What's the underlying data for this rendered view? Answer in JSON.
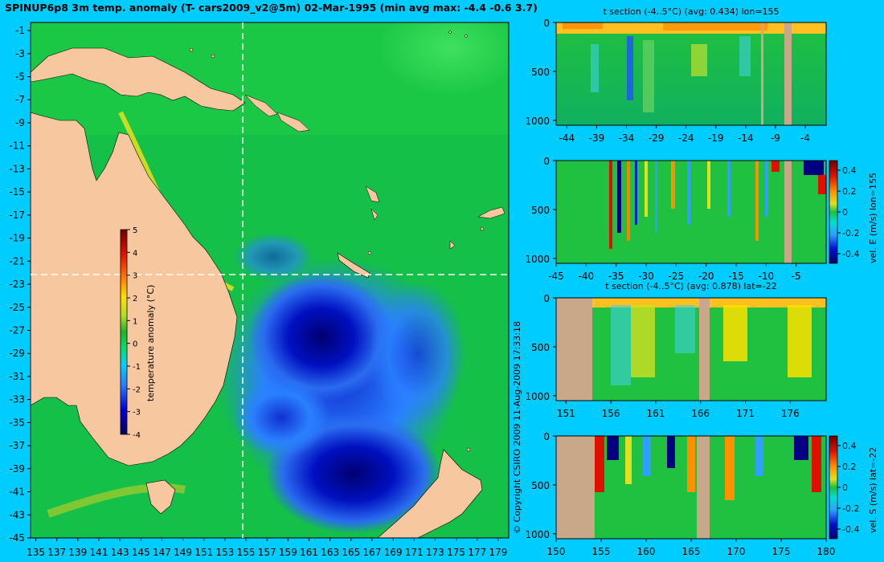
{
  "title": "SPINUP6p8 3m temp. anomaly (T- cars2009_v2@5m) 02-Mar-1995 (min avg max: -4.4 -0.6 3.7)",
  "copyright": "© Copyright CSIRO 2009   11-Aug-2009 17:33:18",
  "colors": {
    "background": "#00ccff",
    "land": "#f7c8a0",
    "section_land": "#c8a888",
    "crosshair": "#ffffff",
    "colormap": [
      "#000060",
      "#0000d8",
      "#2a7cff",
      "#00d0ff",
      "#00e070",
      "#20b030",
      "#b0e020",
      "#ffe000",
      "#ff8000",
      "#e01000",
      "#700000"
    ]
  },
  "map": {
    "x_ticks": [
      "135",
      "137",
      "139",
      "141",
      "143",
      "145",
      "147",
      "149",
      "151",
      "153",
      "155",
      "157",
      "159",
      "161",
      "163",
      "165",
      "167",
      "169",
      "171",
      "173",
      "175",
      "177",
      "179"
    ],
    "y_ticks": [
      "-1",
      "-3",
      "-5",
      "-7",
      "-9",
      "-11",
      "-13",
      "-15",
      "-17",
      "-19",
      "-21",
      "-23",
      "-25",
      "-27",
      "-29",
      "-31",
      "-33",
      "-35",
      "-37",
      "-39",
      "-41",
      "-43",
      "-45"
    ],
    "crosshair_lon": 155,
    "crosshair_lat": -22,
    "colorbar": {
      "label": "temperature anomaly (°C)",
      "ticks": [
        "5",
        "4",
        "3",
        "2",
        "1",
        "0",
        "-1",
        "-2",
        "-3",
        "-4"
      ],
      "range": [
        -4,
        5
      ]
    }
  },
  "panels": [
    {
      "title": "t section (-4..5°C) (avg: 0.434) lon=155",
      "x_ticks": [
        "-44",
        "-39",
        "-34",
        "-29",
        "-24",
        "-19",
        "-14",
        "-9",
        "-4"
      ],
      "y_ticks": [
        "0",
        "500",
        "1000"
      ],
      "colorbar": null
    },
    {
      "title": "",
      "x_ticks": [
        "-45",
        "-40",
        "-35",
        "-30",
        "-25",
        "-20",
        "-15",
        "-10",
        "-5"
      ],
      "y_ticks": [
        "0",
        "500",
        "1000"
      ],
      "colorbar": {
        "label": "vel. E (m/s) lon=155",
        "ticks": [
          "0.4",
          "0.2",
          "0",
          "-0.2",
          "-0.4"
        ]
      }
    },
    {
      "title": "t section (-4..5°C) (avg: 0.878) lat=-22",
      "x_ticks": [
        "151",
        "156",
        "161",
        "166",
        "171",
        "176"
      ],
      "y_ticks": [
        "0",
        "500",
        "1000"
      ],
      "colorbar": null
    },
    {
      "title": "",
      "x_ticks": [
        "150",
        "155",
        "160",
        "165",
        "170",
        "175",
        "180"
      ],
      "y_ticks": [
        "0",
        "500",
        "1000"
      ],
      "colorbar": {
        "label": "vel. S (m/s) lat=-22",
        "ticks": [
          "0.4",
          "0.2",
          "0",
          "-0.2",
          "-0.4"
        ]
      }
    }
  ],
  "chart_data": [
    {
      "type": "heatmap",
      "title": "SPINUP6p8 3m temp. anomaly (T- cars2009_v2@5m) 02-Mar-1995 (min avg max: -4.4 -0.6 3.7)",
      "xlabel": "",
      "ylabel": "",
      "xlim": [
        135,
        180
      ],
      "ylim": [
        -45,
        0
      ],
      "colorbar_label": "temperature anomaly (°C)",
      "value_range": [
        -4,
        5
      ],
      "stats": {
        "min": -4.4,
        "avg": -0.6,
        "max": 3.7
      }
    },
    {
      "type": "heatmap",
      "title": "t section (-4..5°C) (avg: 0.434) lon=155",
      "xlim": [
        -45,
        0
      ],
      "ylim": [
        1050,
        0
      ],
      "value_range": [
        -4,
        5
      ],
      "stats": {
        "avg": 0.434
      }
    },
    {
      "type": "heatmap",
      "title": "",
      "xlim": [
        -45,
        0
      ],
      "ylim": [
        1050,
        0
      ],
      "colorbar_label": "vel. E (m/s) lon=155",
      "value_range": [
        -0.4,
        0.4
      ]
    },
    {
      "type": "heatmap",
      "title": "t section (-4..5°C) (avg: 0.878) lat=-22",
      "xlim": [
        150,
        180
      ],
      "ylim": [
        1050,
        0
      ],
      "value_range": [
        -4,
        5
      ],
      "stats": {
        "avg": 0.878
      }
    },
    {
      "type": "heatmap",
      "title": "",
      "xlim": [
        150,
        180
      ],
      "ylim": [
        1050,
        0
      ],
      "colorbar_label": "vel. S (m/s) lat=-22",
      "value_range": [
        -0.4,
        0.4
      ]
    }
  ]
}
